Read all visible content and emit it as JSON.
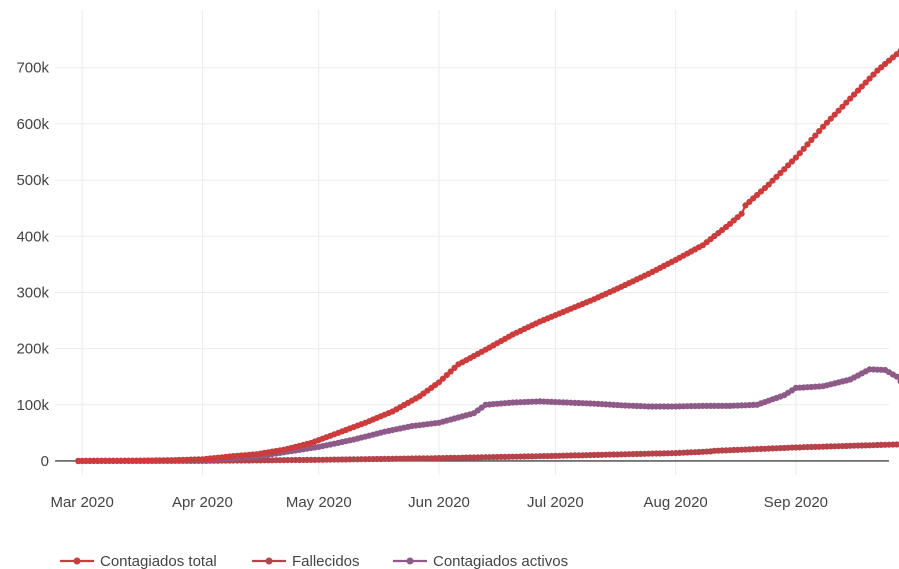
{
  "chart_data": {
    "type": "line",
    "x_start": "2020-02-29",
    "x_end": "2020-09-14",
    "xlim": [
      "2020-02-23",
      "2020-09-25"
    ],
    "ylim": [
      -25000,
      785000
    ],
    "grid": true,
    "legend_position": "bottom-left",
    "x_ticks": [
      {
        "date": "2020-03-01",
        "label": "Mar 2020"
      },
      {
        "date": "2020-04-01",
        "label": "Apr 2020"
      },
      {
        "date": "2020-05-01",
        "label": "May 2020"
      },
      {
        "date": "2020-06-01",
        "label": "Jun 2020"
      },
      {
        "date": "2020-07-01",
        "label": "Jul 2020"
      },
      {
        "date": "2020-08-01",
        "label": "Aug 2020"
      },
      {
        "date": "2020-09-01",
        "label": "Sep 2020"
      }
    ],
    "y_ticks": [
      {
        "value": 0,
        "label": "0"
      },
      {
        "value": 100000,
        "label": "100k"
      },
      {
        "value": 200000,
        "label": "200k"
      },
      {
        "value": 300000,
        "label": "300k"
      },
      {
        "value": 400000,
        "label": "400k"
      },
      {
        "value": 500000,
        "label": "500k"
      },
      {
        "value": 600000,
        "label": "600k"
      },
      {
        "value": 700000,
        "label": "700k"
      }
    ],
    "series": [
      {
        "name": "Contagiados total",
        "color": "#cc3c3c",
        "points": [
          [
            "2020-02-29",
            0
          ],
          [
            "2020-03-15",
            500
          ],
          [
            "2020-03-25",
            1500
          ],
          [
            "2020-04-01",
            3000
          ],
          [
            "2020-04-08",
            8000
          ],
          [
            "2020-04-15",
            12000
          ],
          [
            "2020-04-22",
            20000
          ],
          [
            "2020-04-29",
            32000
          ],
          [
            "2020-05-06",
            50000
          ],
          [
            "2020-05-13",
            68000
          ],
          [
            "2020-05-20",
            88000
          ],
          [
            "2020-05-27",
            115000
          ],
          [
            "2020-06-01",
            140000
          ],
          [
            "2020-06-06",
            172000
          ],
          [
            "2020-06-13",
            198000
          ],
          [
            "2020-06-20",
            225000
          ],
          [
            "2020-06-27",
            248000
          ],
          [
            "2020-07-04",
            268000
          ],
          [
            "2020-07-11",
            288000
          ],
          [
            "2020-07-18",
            310000
          ],
          [
            "2020-07-25",
            333000
          ],
          [
            "2020-08-01",
            358000
          ],
          [
            "2020-08-08",
            384000
          ],
          [
            "2020-08-15",
            422000
          ],
          [
            "2020-08-18",
            440000
          ],
          [
            "2020-08-19",
            455000
          ],
          [
            "2020-08-25",
            492000
          ],
          [
            "2020-09-01",
            540000
          ],
          [
            "2020-09-08",
            595000
          ],
          [
            "2020-09-15",
            645000
          ],
          [
            "2020-09-22",
            695000
          ],
          [
            "2020-09-28",
            730000
          ],
          [
            "2020-09-30",
            742000
          ]
        ]
      },
      {
        "name": "Fallecidos",
        "color": "#b5434a",
        "points": [
          [
            "2020-02-29",
            0
          ],
          [
            "2020-04-01",
            100
          ],
          [
            "2020-05-01",
            2000
          ],
          [
            "2020-06-01",
            5000
          ],
          [
            "2020-07-01",
            9000
          ],
          [
            "2020-08-01",
            14000
          ],
          [
            "2020-08-10",
            17000
          ],
          [
            "2020-08-11",
            18000
          ],
          [
            "2020-09-01",
            24000
          ],
          [
            "2020-09-30",
            30000
          ]
        ]
      },
      {
        "name": "Contagiados activos",
        "color": "#8e5a87",
        "points": [
          [
            "2020-02-29",
            0
          ],
          [
            "2020-03-20",
            200
          ],
          [
            "2020-04-01",
            1500
          ],
          [
            "2020-04-15",
            8000
          ],
          [
            "2020-05-01",
            25000
          ],
          [
            "2020-05-10",
            38000
          ],
          [
            "2020-05-18",
            52000
          ],
          [
            "2020-05-25",
            62000
          ],
          [
            "2020-06-01",
            68000
          ],
          [
            "2020-06-10",
            85000
          ],
          [
            "2020-06-13",
            100000
          ],
          [
            "2020-06-20",
            104000
          ],
          [
            "2020-06-27",
            106000
          ],
          [
            "2020-07-04",
            104000
          ],
          [
            "2020-07-11",
            102000
          ],
          [
            "2020-07-18",
            99000
          ],
          [
            "2020-07-25",
            97000
          ],
          [
            "2020-08-01",
            97000
          ],
          [
            "2020-08-08",
            98000
          ],
          [
            "2020-08-15",
            98000
          ],
          [
            "2020-08-22",
            100000
          ],
          [
            "2020-08-29",
            117000
          ],
          [
            "2020-09-01",
            130000
          ],
          [
            "2020-09-08",
            133000
          ],
          [
            "2020-09-15",
            145000
          ],
          [
            "2020-09-20",
            163000
          ],
          [
            "2020-09-24",
            162000
          ],
          [
            "2020-09-27",
            150000
          ],
          [
            "2020-09-30",
            125000
          ]
        ]
      }
    ]
  }
}
